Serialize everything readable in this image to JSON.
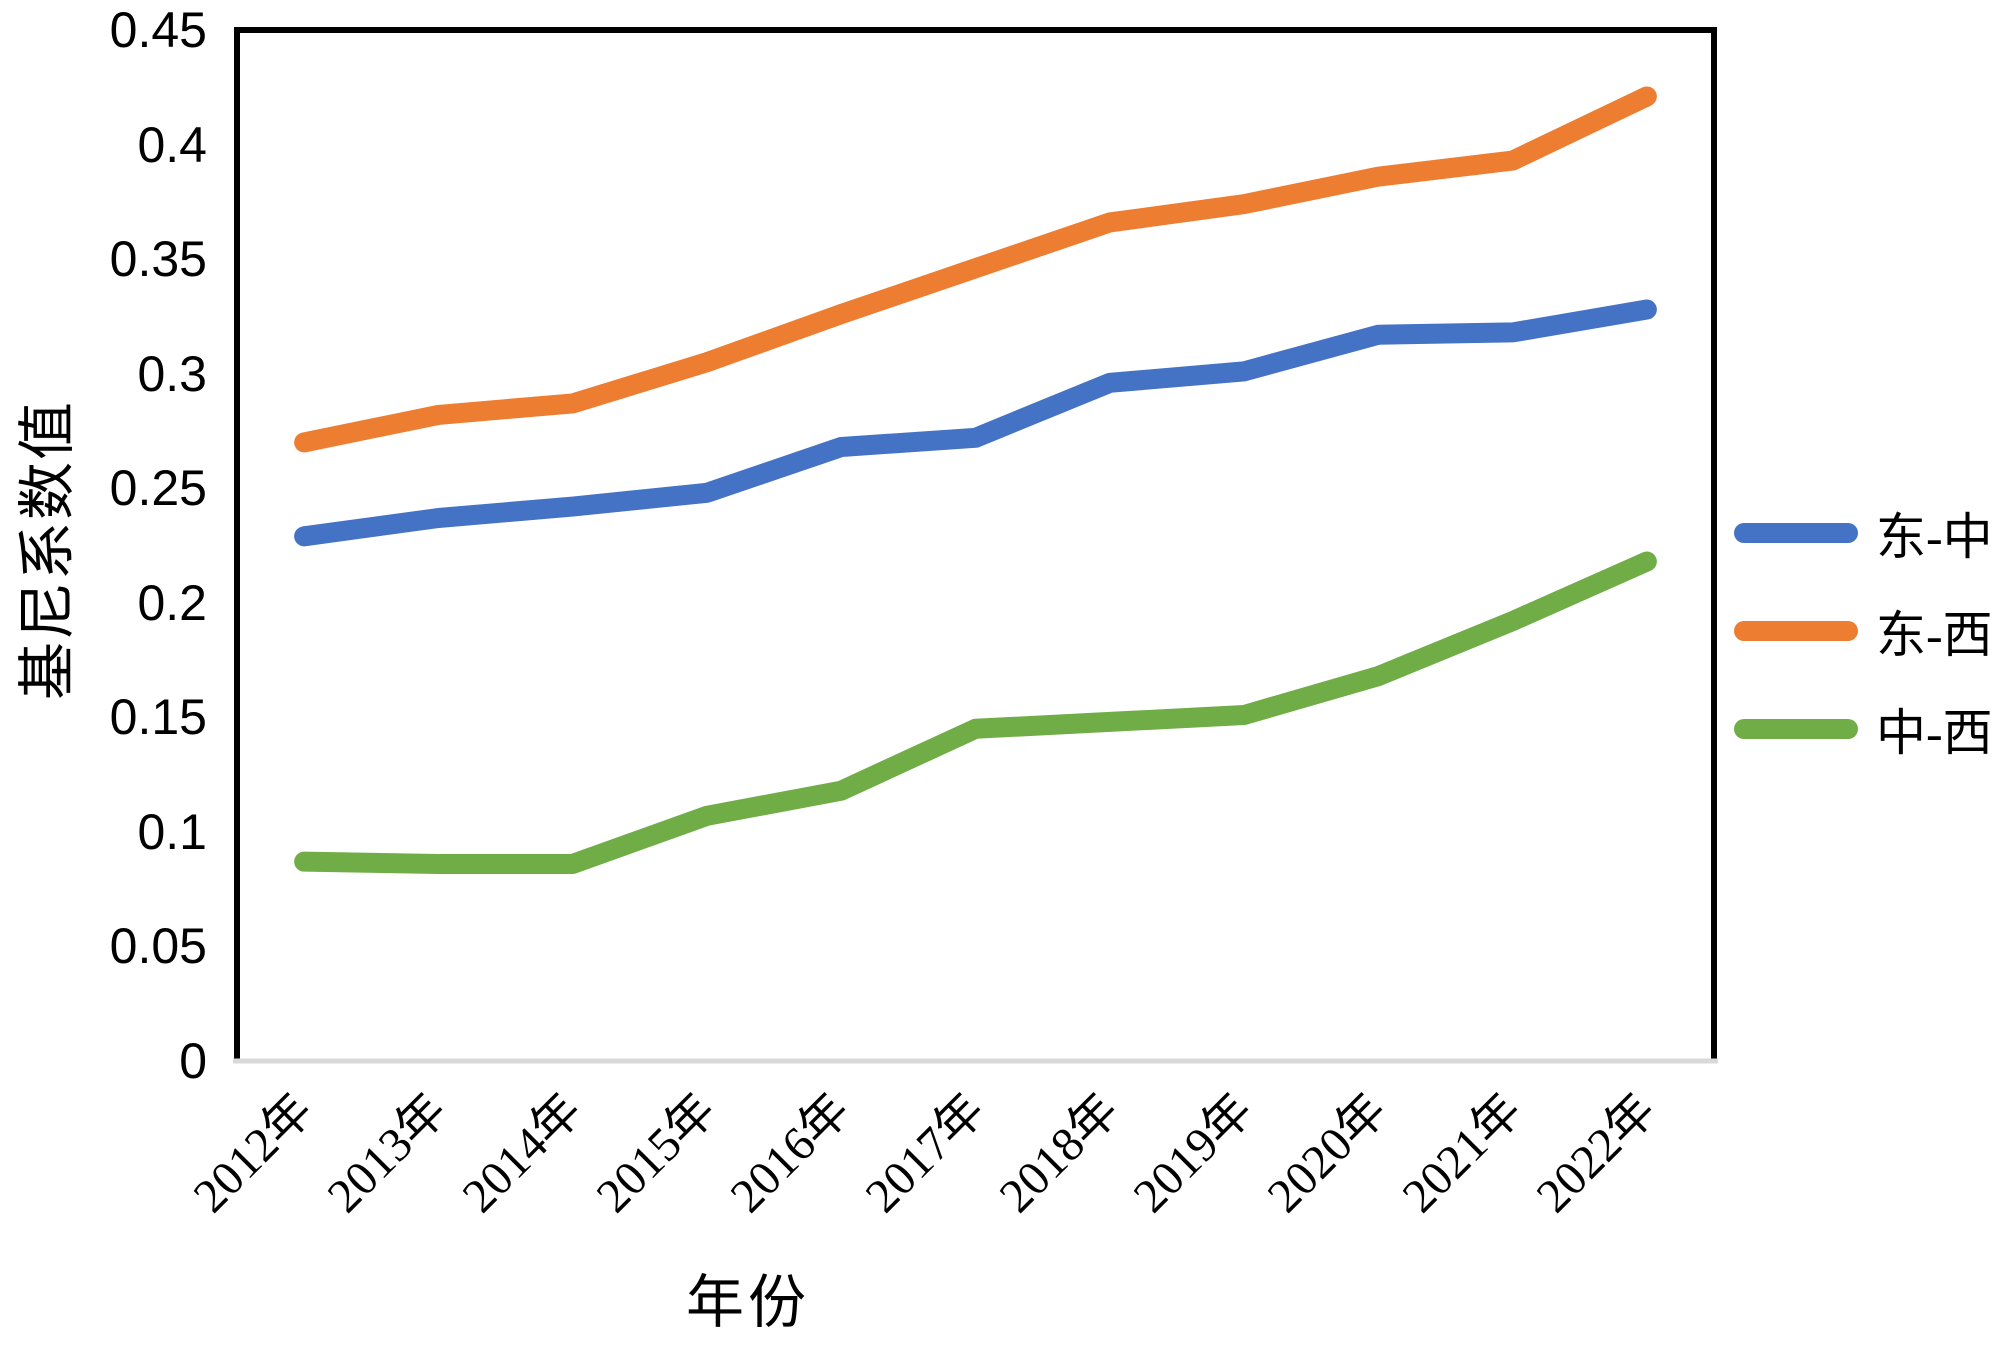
{
  "chart_data": {
    "type": "line",
    "title": "",
    "xlabel": "年份",
    "ylabel": "基尼系数值",
    "categories": [
      "2012年",
      "2013年",
      "2014年",
      "2015年",
      "2016年",
      "2017年",
      "2018年",
      "2019年",
      "2020年",
      "2021年",
      "2022年"
    ],
    "series": [
      {
        "name": "东-中",
        "color": "#4472C4",
        "values": [
          0.229,
          0.237,
          0.242,
          0.248,
          0.268,
          0.272,
          0.296,
          0.301,
          0.317,
          0.318,
          0.328
        ]
      },
      {
        "name": "东-西",
        "color": "#ED7D31",
        "values": [
          0.27,
          0.282,
          0.287,
          0.305,
          0.326,
          0.346,
          0.366,
          0.374,
          0.386,
          0.393,
          0.421
        ]
      },
      {
        "name": "中-西",
        "color": "#70AD47",
        "values": [
          0.087,
          0.086,
          0.086,
          0.107,
          0.118,
          0.145,
          0.148,
          0.151,
          0.168,
          0.192,
          0.218
        ]
      }
    ],
    "ylim": [
      0,
      0.45
    ],
    "ytick_step": 0.05,
    "ytick_labels": [
      "0",
      "0.05",
      "0.1",
      "0.15",
      "0.2",
      "0.25",
      "0.3",
      "0.35",
      "0.4",
      "0.45"
    ],
    "grid": false,
    "legend_position": "right",
    "line_width": 20
  },
  "style": {
    "axis_border_color": "#000000",
    "bottom_axis_color": "#d9d9d9",
    "background": "#ffffff"
  }
}
